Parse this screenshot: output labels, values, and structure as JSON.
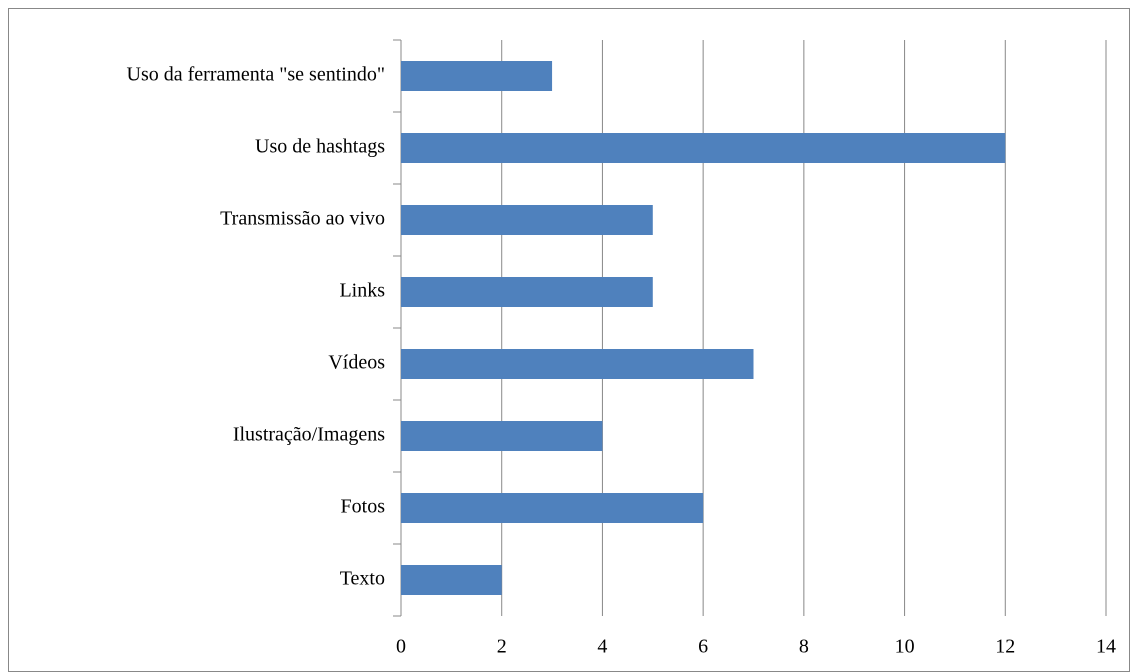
{
  "chart_data": {
    "type": "bar",
    "orientation": "horizontal",
    "categories": [
      "Uso da ferramenta \"se sentindo\"",
      "Uso de hashtags",
      "Transmissão ao vivo",
      "Links",
      "Vídeos",
      "Ilustração/Imagens",
      "Fotos",
      "Texto"
    ],
    "values": [
      3,
      12,
      5,
      5,
      7,
      4,
      6,
      2
    ],
    "color": "#4f81bd",
    "xlim": [
      0,
      14
    ],
    "xticks": [
      0,
      2,
      4,
      6,
      8,
      10,
      12,
      14
    ],
    "grid": true
  }
}
